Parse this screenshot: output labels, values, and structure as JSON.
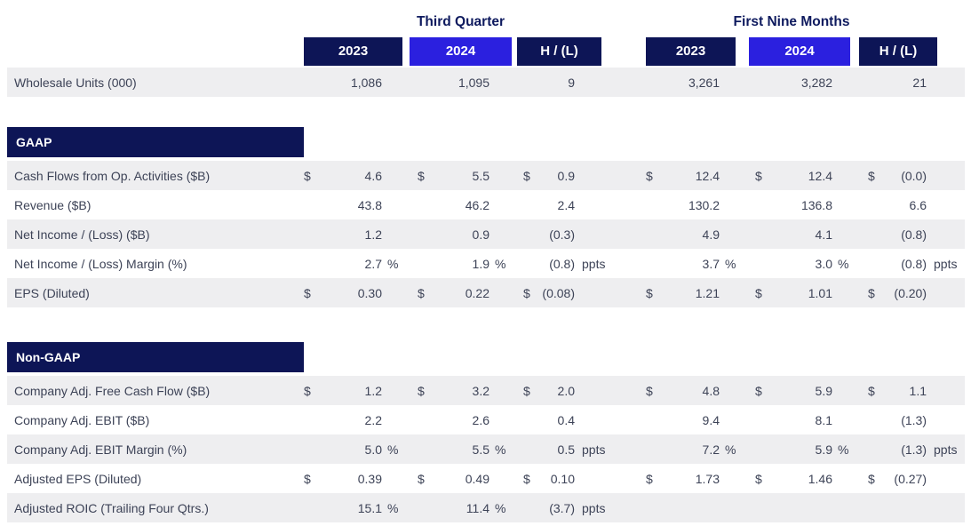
{
  "colors": {
    "navy": "#0d1556",
    "blue": "#2b20df",
    "stripe": "#eeeef0",
    "text": "#3d4357",
    "title": "#0e1a5e"
  },
  "header": {
    "third_quarter": {
      "title": "Third Quarter",
      "col_2023": "2023",
      "col_2024": "2024",
      "col_hl": "H / (L)"
    },
    "first_nine_months": {
      "title": "First Nine Months",
      "col_2023": "2023",
      "col_2024": "2024",
      "col_hl": "H / (L)"
    }
  },
  "sections": [
    {
      "bar": "",
      "rows": [
        {
          "label": "Wholesale Units (000)",
          "shaded": true,
          "cells": [
            {
              "pre": "",
              "val": "1,086",
              "suf": ""
            },
            {
              "pre": "",
              "val": "1,095",
              "suf": ""
            },
            {
              "pre": "",
              "val": "9",
              "suf": ""
            },
            {
              "pre": "",
              "val": "3,261",
              "suf": ""
            },
            {
              "pre": "",
              "val": "3,282",
              "suf": ""
            },
            {
              "pre": "",
              "val": "21",
              "suf": ""
            }
          ]
        }
      ]
    },
    {
      "bar": "GAAP",
      "rows": [
        {
          "label": "Cash Flows from Op. Activities ($B)",
          "shaded": true,
          "cells": [
            {
              "pre": "$",
              "val": "4.6",
              "suf": ""
            },
            {
              "pre": "$",
              "val": "5.5",
              "suf": ""
            },
            {
              "pre": "$",
              "val": "0.9",
              "suf": ""
            },
            {
              "pre": "$",
              "val": "12.4",
              "suf": ""
            },
            {
              "pre": "$",
              "val": "12.4",
              "suf": ""
            },
            {
              "pre": "$",
              "val": "(0.0)",
              "suf": ""
            }
          ]
        },
        {
          "label": "Revenue ($B)",
          "shaded": false,
          "cells": [
            {
              "pre": "",
              "val": "43.8",
              "suf": ""
            },
            {
              "pre": "",
              "val": "46.2",
              "suf": ""
            },
            {
              "pre": "",
              "val": "2.4",
              "suf": ""
            },
            {
              "pre": "",
              "val": "130.2",
              "suf": ""
            },
            {
              "pre": "",
              "val": "136.8",
              "suf": ""
            },
            {
              "pre": "",
              "val": "6.6",
              "suf": ""
            }
          ]
        },
        {
          "label": "Net Income / (Loss) ($B)",
          "shaded": true,
          "cells": [
            {
              "pre": "",
              "val": "1.2",
              "suf": ""
            },
            {
              "pre": "",
              "val": "0.9",
              "suf": ""
            },
            {
              "pre": "",
              "val": "(0.3)",
              "suf": ""
            },
            {
              "pre": "",
              "val": "4.9",
              "suf": ""
            },
            {
              "pre": "",
              "val": "4.1",
              "suf": ""
            },
            {
              "pre": "",
              "val": "(0.8)",
              "suf": ""
            }
          ]
        },
        {
          "label": "Net Income / (Loss) Margin (%)",
          "shaded": false,
          "cells": [
            {
              "pre": "",
              "val": "2.7",
              "suf": "%"
            },
            {
              "pre": "",
              "val": "1.9",
              "suf": "%"
            },
            {
              "pre": "",
              "val": "(0.8)",
              "suf": "ppts"
            },
            {
              "pre": "",
              "val": "3.7",
              "suf": "%"
            },
            {
              "pre": "",
              "val": "3.0",
              "suf": "%"
            },
            {
              "pre": "",
              "val": "(0.8)",
              "suf": "ppts"
            }
          ]
        },
        {
          "label": "EPS (Diluted)",
          "shaded": true,
          "cells": [
            {
              "pre": "$",
              "val": "0.30",
              "suf": ""
            },
            {
              "pre": "$",
              "val": "0.22",
              "suf": ""
            },
            {
              "pre": "$",
              "val": "(0.08)",
              "suf": ""
            },
            {
              "pre": "$",
              "val": "1.21",
              "suf": ""
            },
            {
              "pre": "$",
              "val": "1.01",
              "suf": ""
            },
            {
              "pre": "$",
              "val": "(0.20)",
              "suf": ""
            }
          ]
        }
      ]
    },
    {
      "bar": "Non-GAAP",
      "rows": [
        {
          "label": "Company Adj. Free Cash Flow ($B)",
          "shaded": true,
          "cells": [
            {
              "pre": "$",
              "val": "1.2",
              "suf": ""
            },
            {
              "pre": "$",
              "val": "3.2",
              "suf": ""
            },
            {
              "pre": "$",
              "val": "2.0",
              "suf": ""
            },
            {
              "pre": "$",
              "val": "4.8",
              "suf": ""
            },
            {
              "pre": "$",
              "val": "5.9",
              "suf": ""
            },
            {
              "pre": "$",
              "val": "1.1",
              "suf": ""
            }
          ]
        },
        {
          "label": "Company Adj. EBIT ($B)",
          "shaded": false,
          "cells": [
            {
              "pre": "",
              "val": "2.2",
              "suf": ""
            },
            {
              "pre": "",
              "val": "2.6",
              "suf": ""
            },
            {
              "pre": "",
              "val": "0.4",
              "suf": ""
            },
            {
              "pre": "",
              "val": "9.4",
              "suf": ""
            },
            {
              "pre": "",
              "val": "8.1",
              "suf": ""
            },
            {
              "pre": "",
              "val": "(1.3)",
              "suf": ""
            }
          ]
        },
        {
          "label": "Company Adj. EBIT Margin (%)",
          "shaded": true,
          "cells": [
            {
              "pre": "",
              "val": "5.0",
              "suf": "%"
            },
            {
              "pre": "",
              "val": "5.5",
              "suf": "%"
            },
            {
              "pre": "",
              "val": "0.5",
              "suf": "ppts"
            },
            {
              "pre": "",
              "val": "7.2",
              "suf": "%"
            },
            {
              "pre": "",
              "val": "5.9",
              "suf": "%"
            },
            {
              "pre": "",
              "val": "(1.3)",
              "suf": "ppts"
            }
          ]
        },
        {
          "label": "Adjusted EPS (Diluted)",
          "shaded": false,
          "cells": [
            {
              "pre": "$",
              "val": "0.39",
              "suf": ""
            },
            {
              "pre": "$",
              "val": "0.49",
              "suf": ""
            },
            {
              "pre": "$",
              "val": "0.10",
              "suf": ""
            },
            {
              "pre": "$",
              "val": "1.73",
              "suf": ""
            },
            {
              "pre": "$",
              "val": "1.46",
              "suf": ""
            },
            {
              "pre": "$",
              "val": "(0.27)",
              "suf": ""
            }
          ]
        },
        {
          "label": "Adjusted ROIC (Trailing Four Qtrs.)",
          "shaded": true,
          "cells": [
            {
              "pre": "",
              "val": "15.1",
              "suf": "%"
            },
            {
              "pre": "",
              "val": "11.4",
              "suf": "%"
            },
            {
              "pre": "",
              "val": "(3.7)",
              "suf": "ppts"
            },
            {
              "pre": "",
              "val": "",
              "suf": ""
            },
            {
              "pre": "",
              "val": "",
              "suf": ""
            },
            {
              "pre": "",
              "val": "",
              "suf": ""
            }
          ]
        }
      ]
    }
  ]
}
